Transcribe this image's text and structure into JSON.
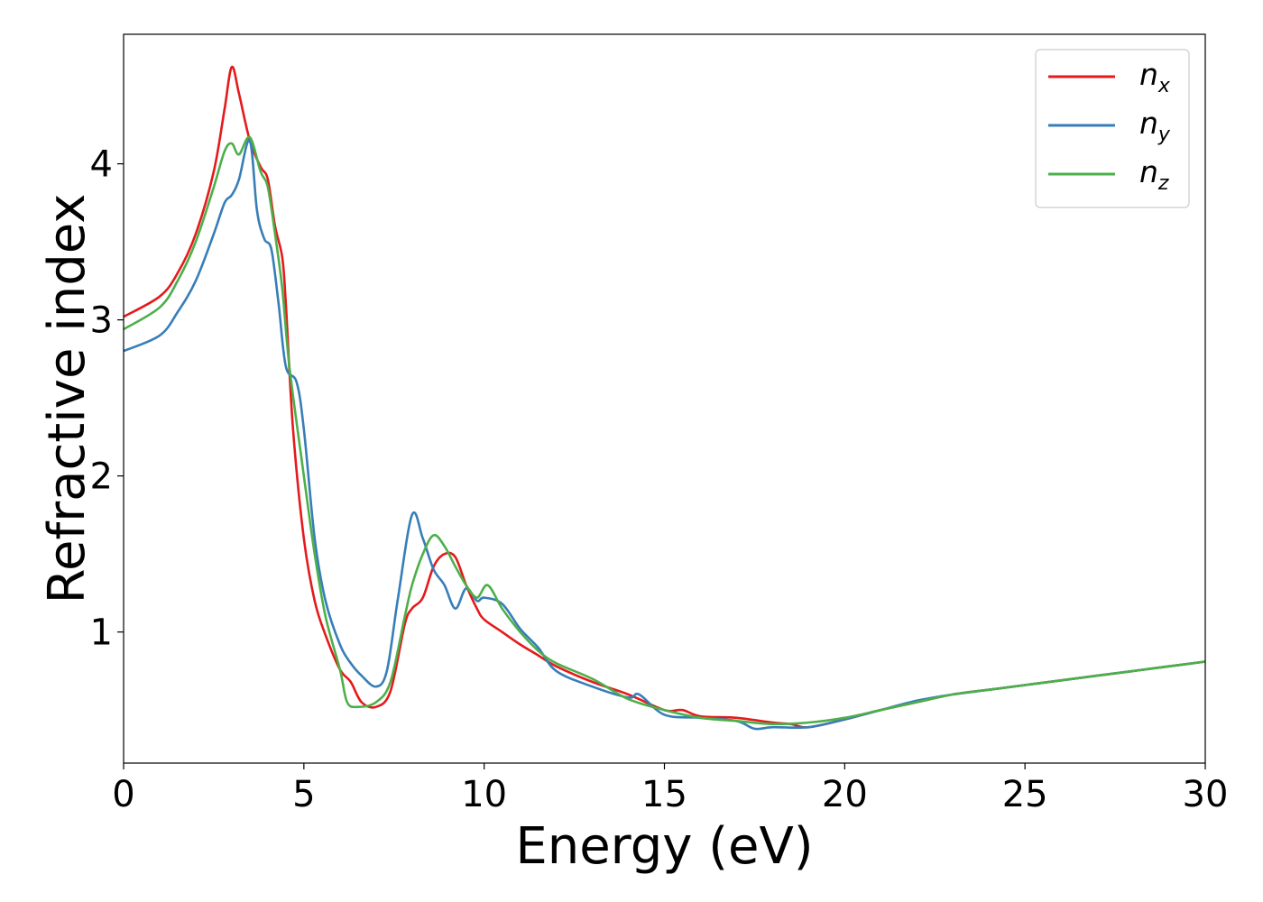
{
  "chart_data": {
    "type": "line",
    "xlabel": "Energy (eV)",
    "ylabel": "Refractive index",
    "xlim": [
      0,
      30
    ],
    "ylim": [
      0.16,
      4.83
    ],
    "xticks": [
      0,
      5,
      10,
      15,
      20,
      25,
      30
    ],
    "yticks": [
      1,
      2,
      3,
      4
    ],
    "grid": false,
    "legend_position": "top-right",
    "series": [
      {
        "name": "n_x",
        "name_main": "n",
        "name_sub": "x",
        "color": "#e41a1c",
        "x": [
          0,
          1,
          1.5,
          2,
          2.5,
          2.8,
          3.0,
          3.2,
          3.5,
          3.8,
          4.0,
          4.2,
          4.4,
          4.5,
          4.7,
          5.0,
          5.3,
          5.6,
          6.0,
          6.3,
          6.6,
          7.0,
          7.4,
          7.8,
          8.0,
          8.3,
          8.6,
          8.9,
          9.2,
          9.5,
          9.8,
          10.0,
          10.5,
          11.0,
          11.5,
          12.0,
          13.0,
          14.0,
          15.0,
          15.5,
          16.0,
          17.0,
          18.0,
          18.5,
          19.0,
          20.0,
          21.0,
          22.0,
          23.0,
          24.0,
          25.0,
          26.0,
          27.0,
          28.0,
          29.0,
          30.0
        ],
        "y": [
          3.02,
          3.15,
          3.3,
          3.55,
          3.95,
          4.35,
          4.62,
          4.45,
          4.15,
          3.98,
          3.9,
          3.6,
          3.4,
          3.1,
          2.3,
          1.6,
          1.2,
          0.98,
          0.76,
          0.68,
          0.55,
          0.52,
          0.62,
          1.05,
          1.15,
          1.22,
          1.42,
          1.5,
          1.48,
          1.3,
          1.15,
          1.08,
          1.0,
          0.92,
          0.85,
          0.78,
          0.68,
          0.6,
          0.5,
          0.5,
          0.46,
          0.45,
          0.42,
          0.41,
          0.39,
          0.44,
          0.5,
          0.55,
          0.6,
          0.63,
          0.66,
          0.69,
          0.72,
          0.75,
          0.78,
          0.81
        ]
      },
      {
        "name": "n_y",
        "name_main": "n",
        "name_sub": "y",
        "color": "#377eb8",
        "x": [
          0,
          1,
          1.5,
          2,
          2.5,
          2.8,
          3.0,
          3.2,
          3.5,
          3.7,
          3.9,
          4.1,
          4.3,
          4.5,
          4.8,
          5.0,
          5.3,
          5.6,
          6.0,
          6.3,
          6.6,
          7.0,
          7.3,
          7.6,
          8.0,
          8.3,
          8.6,
          8.9,
          9.2,
          9.5,
          9.8,
          10.0,
          10.5,
          11.0,
          11.5,
          12.0,
          13.0,
          14.0,
          14.3,
          15.0,
          16.0,
          17.0,
          17.5,
          18.0,
          19.0,
          20.0,
          21.0,
          22.0,
          23.0,
          24.0,
          25.0,
          26.0,
          27.0,
          28.0,
          29.0,
          30.0
        ],
        "y": [
          2.8,
          2.9,
          3.05,
          3.25,
          3.55,
          3.75,
          3.8,
          3.9,
          4.15,
          3.7,
          3.52,
          3.45,
          3.1,
          2.7,
          2.6,
          2.3,
          1.6,
          1.2,
          0.92,
          0.8,
          0.72,
          0.65,
          0.75,
          1.2,
          1.75,
          1.6,
          1.4,
          1.3,
          1.15,
          1.28,
          1.2,
          1.22,
          1.18,
          1.02,
          0.9,
          0.75,
          0.65,
          0.58,
          0.6,
          0.47,
          0.45,
          0.43,
          0.38,
          0.39,
          0.39,
          0.44,
          0.5,
          0.56,
          0.6,
          0.63,
          0.66,
          0.69,
          0.72,
          0.75,
          0.78,
          0.81
        ]
      },
      {
        "name": "n_z",
        "name_main": "n",
        "name_sub": "z",
        "color": "#4daf4a",
        "x": [
          0,
          1,
          1.5,
          2,
          2.5,
          2.8,
          3.0,
          3.2,
          3.5,
          3.8,
          4.0,
          4.2,
          4.4,
          4.6,
          5.0,
          5.3,
          5.6,
          6.0,
          6.2,
          6.5,
          7.0,
          7.4,
          7.8,
          8.0,
          8.3,
          8.6,
          8.9,
          9.2,
          9.5,
          9.8,
          10.1,
          10.5,
          11.0,
          11.5,
          12.0,
          13.0,
          14.0,
          15.0,
          16.0,
          17.0,
          18.0,
          19.0,
          20.0,
          21.0,
          22.0,
          23.0,
          24.0,
          25.0,
          26.0,
          27.0,
          28.0,
          29.0,
          30.0
        ],
        "y": [
          2.94,
          3.08,
          3.25,
          3.5,
          3.85,
          4.08,
          4.13,
          4.06,
          4.17,
          3.95,
          3.85,
          3.55,
          3.2,
          2.7,
          2.0,
          1.5,
          1.1,
          0.76,
          0.55,
          0.52,
          0.55,
          0.68,
          1.1,
          1.3,
          1.5,
          1.62,
          1.55,
          1.42,
          1.3,
          1.22,
          1.3,
          1.15,
          1.0,
          0.88,
          0.8,
          0.7,
          0.57,
          0.5,
          0.45,
          0.43,
          0.41,
          0.42,
          0.45,
          0.5,
          0.55,
          0.6,
          0.63,
          0.66,
          0.69,
          0.72,
          0.75,
          0.78,
          0.81
        ]
      }
    ]
  }
}
